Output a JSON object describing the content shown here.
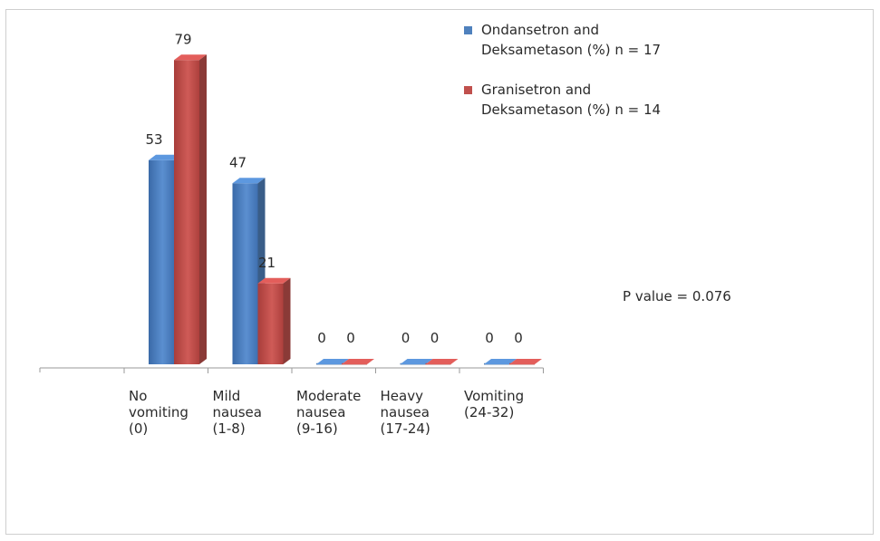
{
  "chart_data": {
    "type": "bar",
    "style": "3d-clustered",
    "categories": [
      [
        "No",
        "vomiting",
        "(0)"
      ],
      [
        "Mild",
        "nausea",
        "(1-8)"
      ],
      [
        "Moderate",
        "nausea",
        "(9-16)"
      ],
      [
        "Heavy",
        "nausea",
        "(17-24)"
      ],
      [
        "Vomiting",
        "(24-32)"
      ]
    ],
    "series": [
      {
        "name": [
          "Ondansetron and",
          "Deksametason (%) n = 17"
        ],
        "values": [
          53,
          47,
          0,
          0,
          0
        ],
        "color": "#4f81bd"
      },
      {
        "name": [
          "Granisetron and",
          "Deksametason (%) n = 14"
        ],
        "values": [
          79,
          21,
          0,
          0,
          0
        ],
        "color": "#c0504d"
      }
    ],
    "ylim": [
      0,
      80
    ],
    "data_labels": true,
    "grid": false,
    "legend": "top-right",
    "annotation": "P value = 0.076"
  }
}
